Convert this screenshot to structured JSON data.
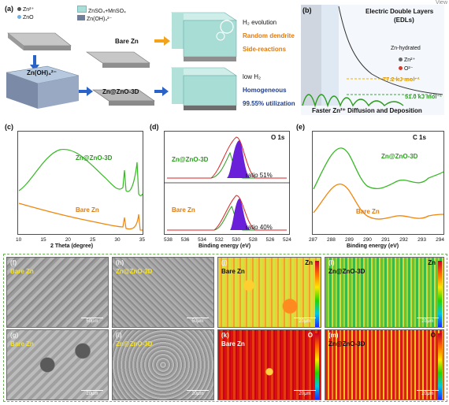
{
  "panel_a": {
    "label": "(a)",
    "legend": {
      "zn_ion": "Zn²⁺",
      "zno": "ZnO",
      "electrolyte": "ZnSO₄+MnSO₄",
      "zincate": "Zn(OH)₄²⁻"
    },
    "slab_left_bottom": "Zn(OH)₄²⁻",
    "bare_zn": "Bare Zn",
    "zn_zno_3d": "Zn@ZnO-3D",
    "h2_evolution": "H₂ evolution",
    "random_dendrite": "Random dendrite",
    "side_reactions": "Side-reactions",
    "low_h2": "low H₂",
    "homogeneous": "Homogeneous",
    "utilization": "99.55% utilization"
  },
  "panel_b": {
    "label": "(b)",
    "title_line1": "Electric Double Layers",
    "title_line2": "(EDLs)",
    "legend_hydrated": "Zn-hydrated",
    "legend_zn": "Zn²⁺",
    "legend_o": "O²⁻",
    "energy_high": "77.2 kJ mol⁻¹",
    "energy_low": "51.0 kJ mol⁻¹",
    "caption": "Faster Zn²⁺ Diffusion and Deposition"
  },
  "panel_c": {
    "label": "(c)",
    "xlabel": "2 Theta (degree)",
    "xticks": [
      "10",
      "15",
      "20",
      "25",
      "30",
      "35"
    ],
    "series_top": "Zn@ZnO-3D",
    "series_bottom": "Bare Zn"
  },
  "panel_d": {
    "label": "(d)",
    "title": "O 1s",
    "xlabel": "Binding energy (eV)",
    "xticks": [
      "538",
      "536",
      "534",
      "532",
      "530",
      "528",
      "526",
      "524"
    ],
    "series_top": "Zn@ZnO-3D",
    "ratio_top": "ratio 51%",
    "series_bottom": "Bare Zn",
    "ratio_bottom": "ratio 40%"
  },
  "panel_e": {
    "label": "(e)",
    "title": "C 1s",
    "xlabel": "Binding energy (eV)",
    "xticks": [
      "287",
      "288",
      "289",
      "290",
      "291",
      "292",
      "293",
      "294"
    ],
    "series_top": "Zn@ZnO-3D",
    "series_bottom": "Bare Zn"
  },
  "micro": {
    "f": {
      "letter": "(f)",
      "label": "Bare Zn",
      "scale": "50μm"
    },
    "h": {
      "letter": "(h)",
      "label": "Zn@ZnO-3D",
      "scale": "50μm"
    },
    "j": {
      "letter": "(j)",
      "label": "Bare Zn",
      "element": "Zn",
      "scale": "20μm"
    },
    "l": {
      "letter": "(l)",
      "label": "Zn@ZnO-3D",
      "element": "Zn",
      "scale": "20μm"
    },
    "g": {
      "letter": "(g)",
      "label": "Bare Zn",
      "scale": "20μm"
    },
    "i": {
      "letter": "(i)",
      "label": "Zn@ZnO-3D",
      "scale": "20μm"
    },
    "k": {
      "letter": "(k)",
      "label": "Bare Zn",
      "element": "O",
      "scale": "20μm"
    },
    "m": {
      "letter": "(m)",
      "label": "Zn@ZnO-3D",
      "element": "O",
      "scale": "20μm"
    }
  },
  "view_corner": "View"
}
